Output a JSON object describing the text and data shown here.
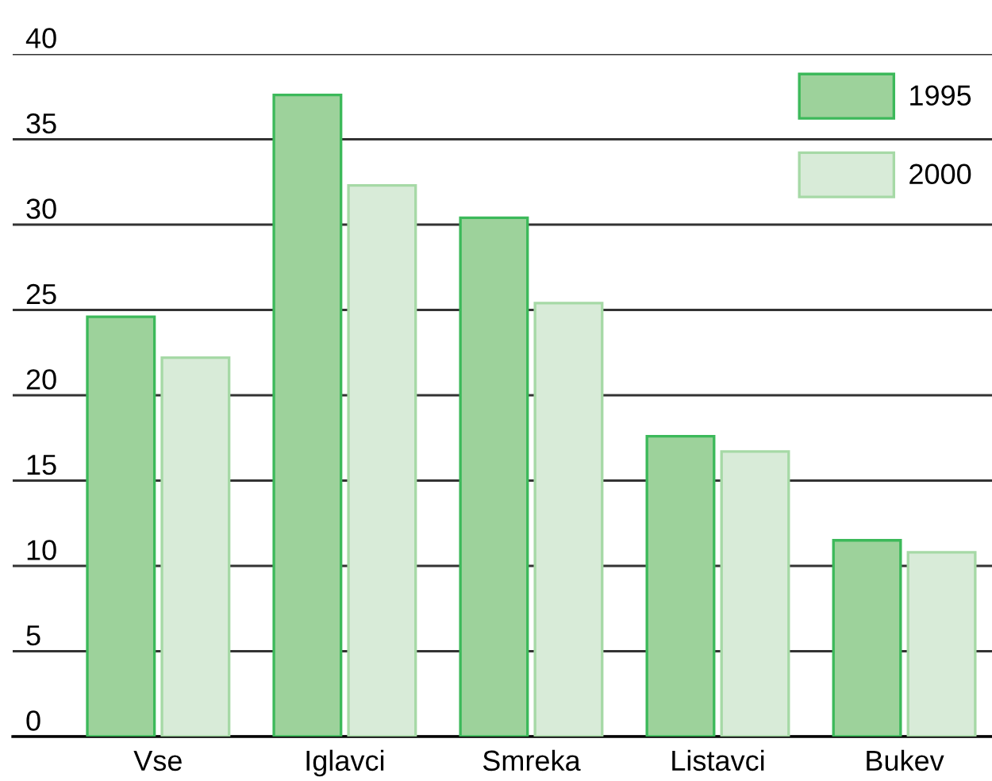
{
  "chart_data": {
    "type": "bar",
    "categories": [
      "Vse",
      "Iglavci",
      "Smreka",
      "Listavci",
      "Bukev"
    ],
    "series": [
      {
        "name": "1995",
        "color": "#9dd29b",
        "values": [
          24.6,
          37.6,
          30.4,
          17.6,
          11.5
        ]
      },
      {
        "name": "2000",
        "color": "#d8ebd8",
        "values": [
          22.2,
          32.3,
          25.4,
          16.7,
          10.8
        ]
      }
    ],
    "ylim": [
      0,
      40
    ],
    "yticks": [
      0,
      5,
      10,
      15,
      20,
      25,
      30,
      35,
      40
    ],
    "grid": "y",
    "legend": "top right"
  }
}
